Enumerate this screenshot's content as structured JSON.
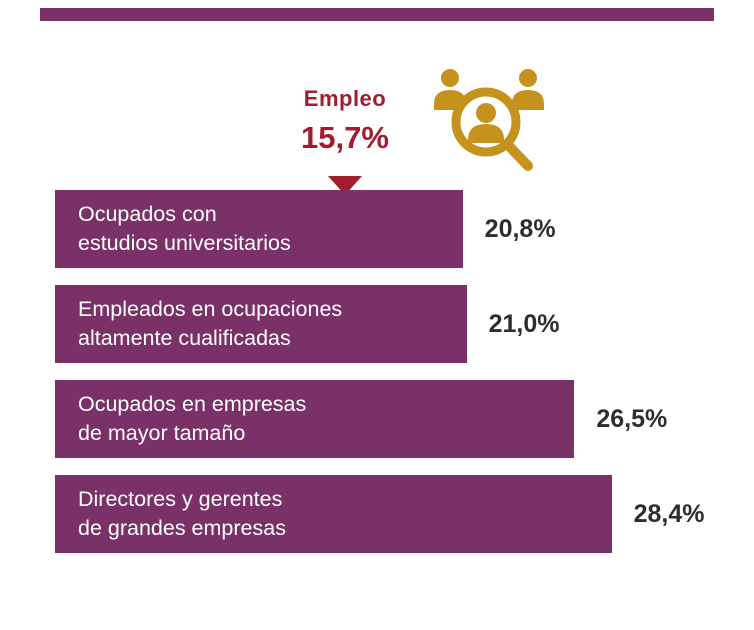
{
  "chart_data": {
    "type": "bar",
    "orientation": "horizontal",
    "title": "",
    "annotation": {
      "label": "Empleo",
      "value_text": "15,7%",
      "value": 15.7
    },
    "categories": [
      "Ocupados con estudios universitarios",
      "Empleados en ocupaciones altamente cualificadas",
      "Ocupados en empresas de mayor tamaño",
      "Directores y gerentes de grandes empresas"
    ],
    "values": [
      20.8,
      21.0,
      26.5,
      28.4
    ],
    "value_labels": [
      "20,8%",
      "21,0%",
      "26,5%",
      "28,4%"
    ],
    "xlim": [
      0,
      30
    ],
    "grid": false,
    "legend": false
  },
  "annotation": {
    "label": "Empleo",
    "value": "15,7%"
  },
  "bars": [
    {
      "line1": "Ocupados con",
      "line2": "estudios universitarios",
      "value": 20.8,
      "label": "20,8%"
    },
    {
      "line1": "Empleados en ocupaciones",
      "line2": "altamente cualificadas",
      "value": 21.0,
      "label": "21,0%"
    },
    {
      "line1": "Ocupados en empresas",
      "line2": "de mayor tamaño",
      "value": 26.5,
      "label": "26,5%"
    },
    {
      "line1": "Directores y gerentes",
      "line2": "de grandes empresas",
      "value": 28.4,
      "label": "28,4%"
    }
  ],
  "icons": [
    {
      "name": "people-search-icon",
      "color": "#c6921e"
    }
  ],
  "colors": {
    "bar_purple": "#7a3168",
    "accent_red": "#a01d30",
    "icon_gold": "#c6921e",
    "value_text": "#2d2d2d",
    "bar_label_text": "#ffffff",
    "background": "#ffffff"
  }
}
